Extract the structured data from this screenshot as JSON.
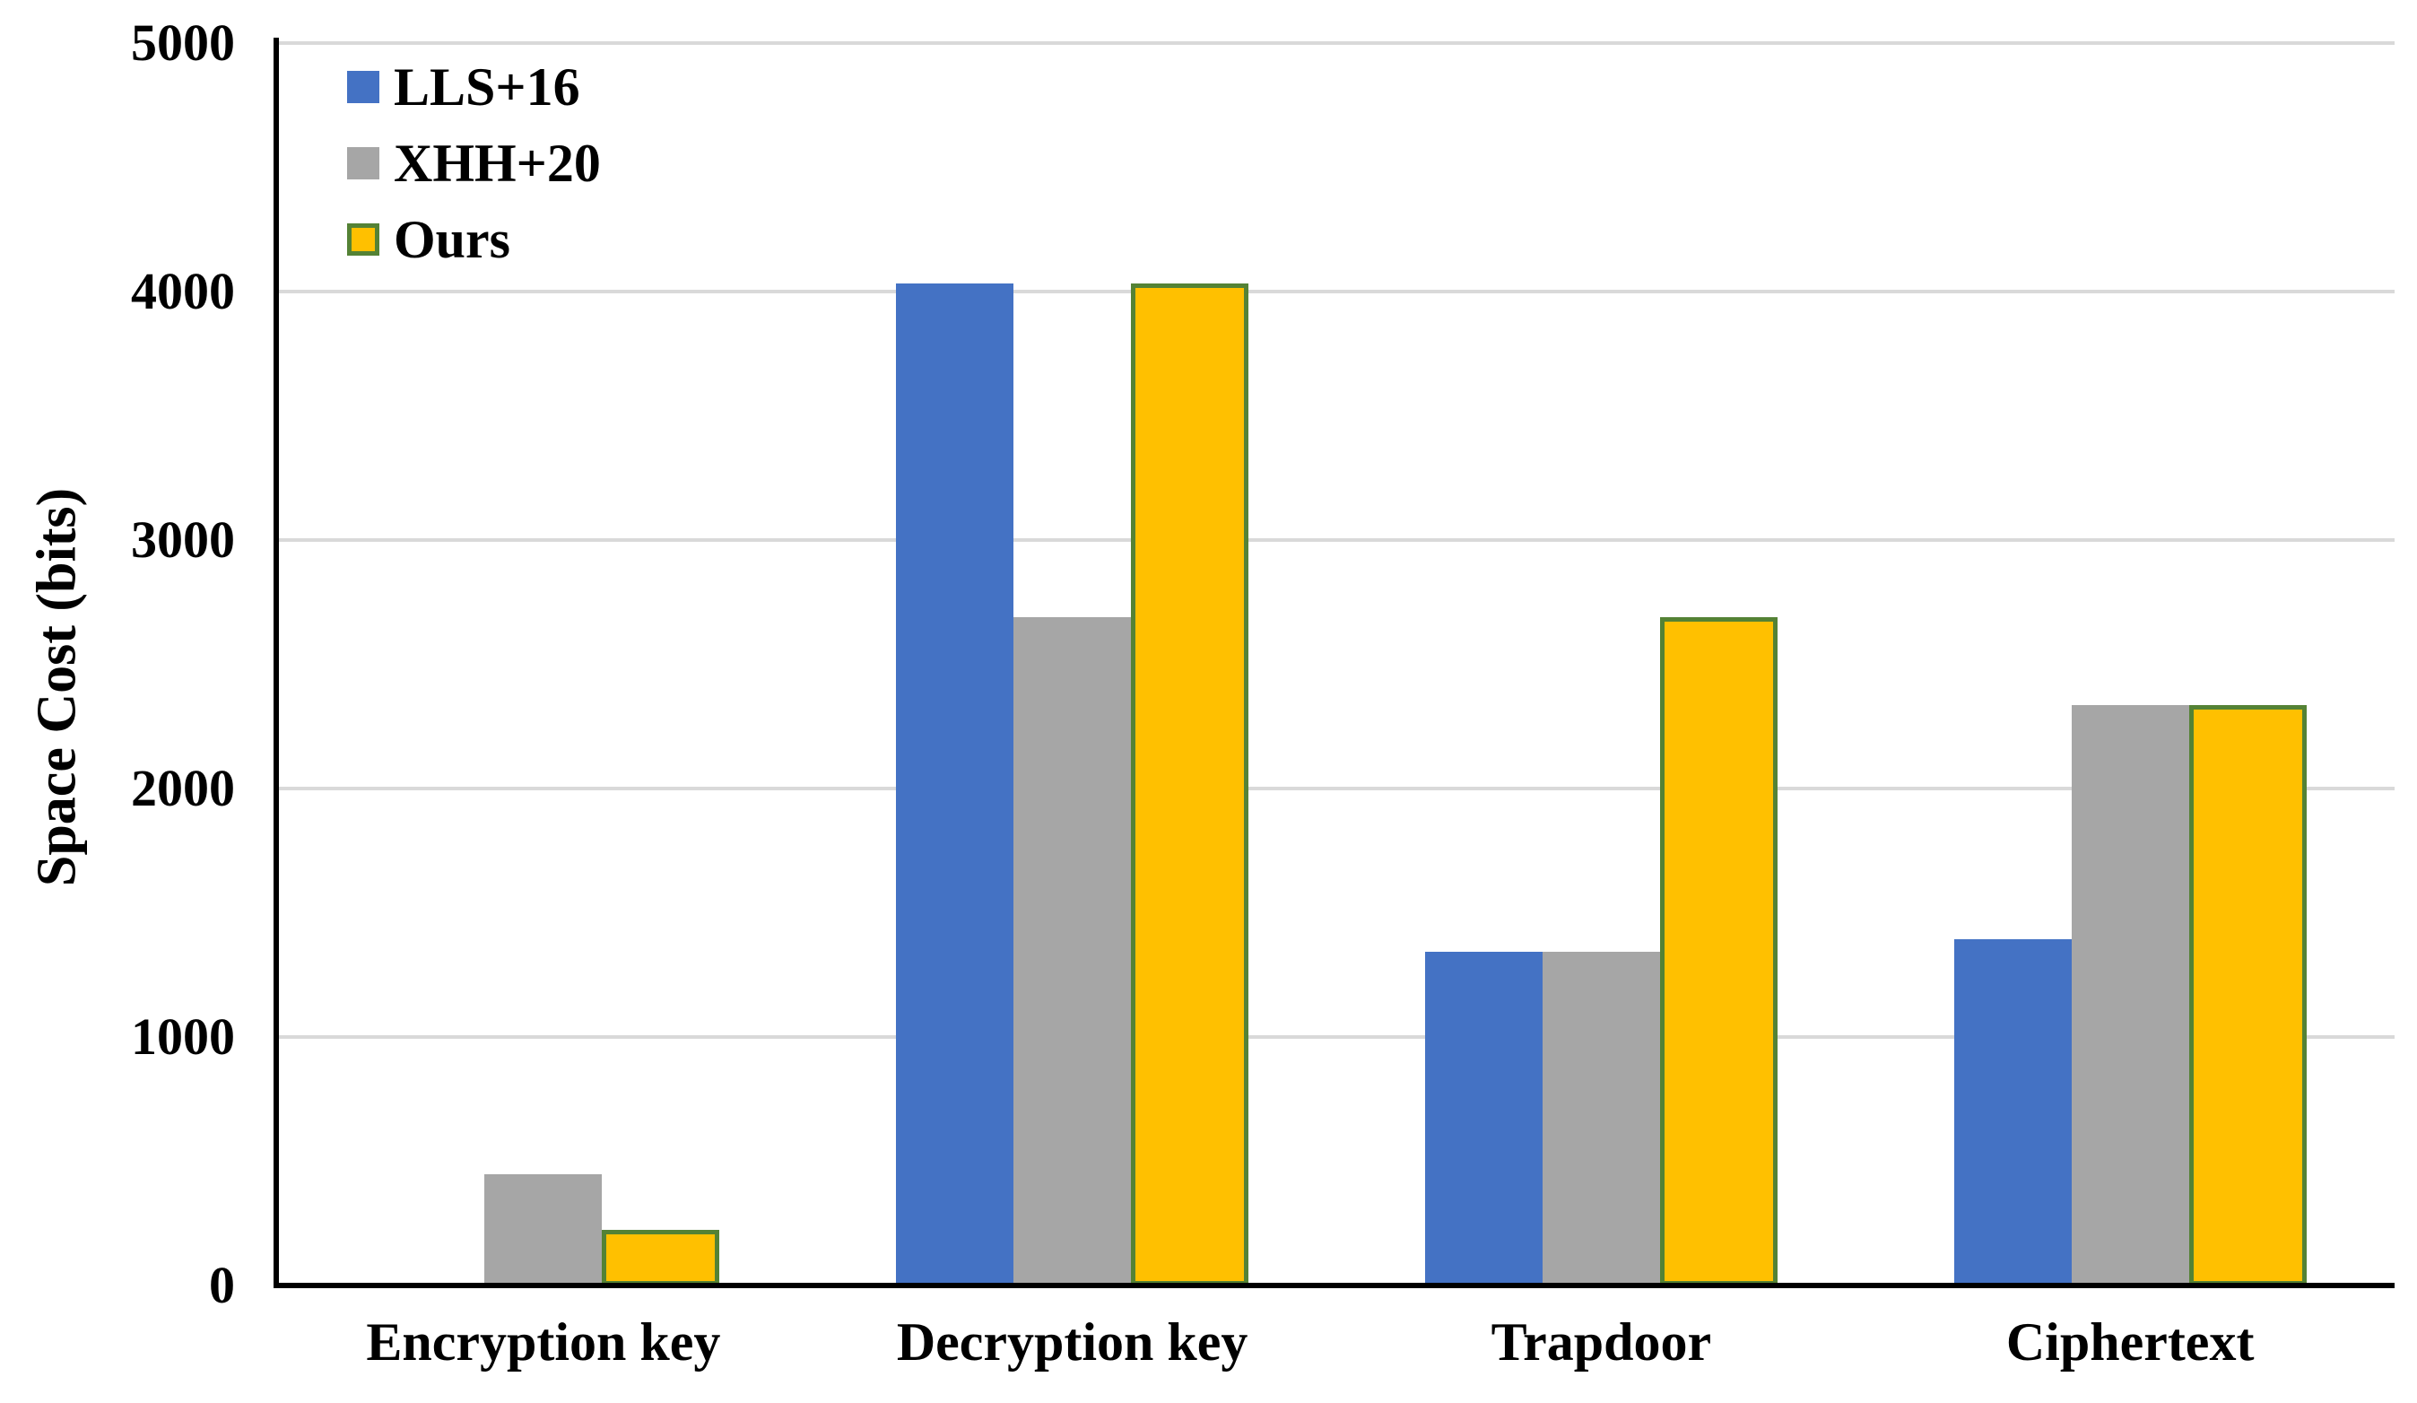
{
  "chart_data": {
    "type": "bar",
    "title": "",
    "xlabel": "",
    "ylabel": "Space Cost (bits)",
    "ylim": [
      0,
      5000
    ],
    "yticks": [
      0,
      1000,
      2000,
      3000,
      4000,
      5000
    ],
    "grid": true,
    "legend_position": "top-left-vertical",
    "categories": [
      "Encryption key",
      "Decryption key",
      "Trapdoor",
      "Ciphertext"
    ],
    "series": [
      {
        "name": "LLS+16",
        "color": "#4472C4",
        "border_color": null,
        "values": [
          0,
          4032,
          1344,
          1392
        ]
      },
      {
        "name": "XHH+20",
        "color": "#A6A6A6",
        "border_color": null,
        "values": [
          448,
          2688,
          1344,
          2336
        ]
      },
      {
        "name": "Ours",
        "color": "#FFC000",
        "border_color": "#548235",
        "values": [
          224,
          4032,
          2688,
          2336
        ]
      }
    ]
  },
  "colors": {
    "gridline": "#D9D9D9",
    "axis": "#000000",
    "background": "#FFFFFF",
    "text": "#000000"
  },
  "layout_values": {
    "bar_border_px": 5
  }
}
